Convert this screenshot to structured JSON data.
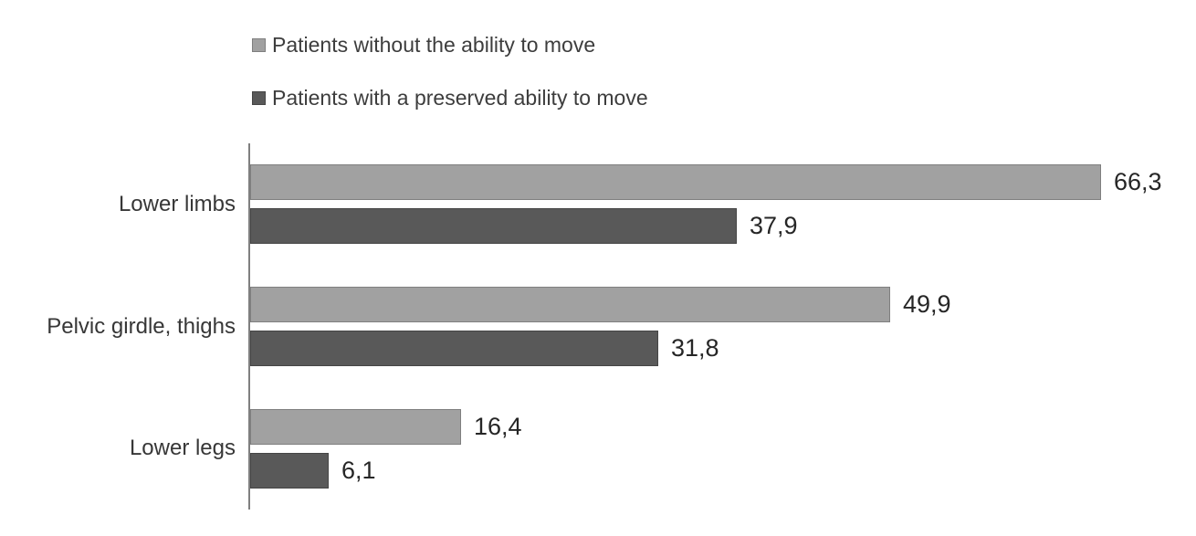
{
  "chart_data": {
    "type": "bar",
    "orientation": "horizontal",
    "title": "",
    "xlabel": "",
    "ylabel": "",
    "grid": false,
    "legend_position": "top-left",
    "xlim": [
      0,
      70
    ],
    "value_label_decimal_separator": ",",
    "categories": [
      "Lower limbs",
      "Pelvic girdle, thighs",
      "Lower legs"
    ],
    "series": [
      {
        "name": "Patients without the ability to move",
        "color": "#a1a1a1",
        "border_color": "#7f7f7f",
        "values": [
          66.3,
          49.9,
          16.4
        ],
        "value_labels": [
          "66,3",
          "49,9",
          "16,4"
        ]
      },
      {
        "name": "Patients with a preserved ability to move",
        "color": "#595959",
        "border_color": "#454545",
        "values": [
          37.9,
          31.8,
          6.1
        ],
        "value_labels": [
          "37,9",
          "31,8",
          "6,1"
        ]
      }
    ]
  }
}
